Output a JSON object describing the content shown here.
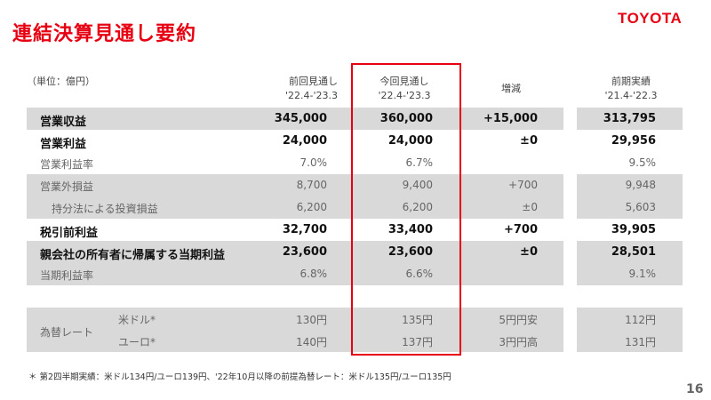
{
  "title": "連結決算見通し要約",
  "logo": "TOYOTA",
  "unit": "（単位：億円）",
  "headers": [
    {
      "l1": "前回見通し",
      "l2": "'22.4-'23.3"
    },
    {
      "l1": "今回見通し",
      "l2": "'22.4-'23.3"
    },
    {
      "l1": "増減",
      "l2": ""
    },
    {
      "l1": "前期実績",
      "l2": "'21.4-'22.3"
    }
  ],
  "rows": [
    {
      "label": "営業収益",
      "prev": "345,000",
      "curr": "360,000",
      "diff": "+15,000",
      "last": "313,795"
    },
    {
      "label": "営業利益",
      "prev": "24,000",
      "curr": "24,000",
      "diff": "±0",
      "last": "29,956"
    },
    {
      "label": "営業利益率",
      "prev": "7.0%",
      "curr": "6.7%",
      "diff": "",
      "last": "9.5%"
    },
    {
      "label": "営業外損益",
      "prev": "8,700",
      "curr": "9,400",
      "diff": "+700",
      "last": "9,948"
    },
    {
      "label": "持分法による投資損益",
      "prev": "6,200",
      "curr": "6,200",
      "diff": "±0",
      "last": "5,603"
    },
    {
      "label": "税引前利益",
      "prev": "32,700",
      "curr": "33,400",
      "diff": "+700",
      "last": "39,905"
    },
    {
      "label": "親会社の所有者に帰属する当期利益",
      "prev": "23,600",
      "curr": "23,600",
      "diff": "±0",
      "last": "28,501"
    },
    {
      "label": "当期利益率",
      "prev": "6.8%",
      "curr": "6.6%",
      "diff": "",
      "last": "9.1%"
    }
  ],
  "fx": {
    "label": "為替レート",
    "rows": [
      {
        "label": "米ドル*",
        "prev": "130円",
        "curr": "135円",
        "diff": "5円円安",
        "last": "112円"
      },
      {
        "label": "ユーロ*",
        "prev": "140円",
        "curr": "137円",
        "diff": "3円円高",
        "last": "131円"
      }
    ]
  },
  "footnote": "＊ 第2四半期実績：米ドル134円/ユーロ139円、'22年10月以降の前提為替レート：米ドル135円/ユーロ135円",
  "page_number": "16",
  "colors": {
    "accent": "#e60012",
    "band": "#d9d9d9"
  }
}
